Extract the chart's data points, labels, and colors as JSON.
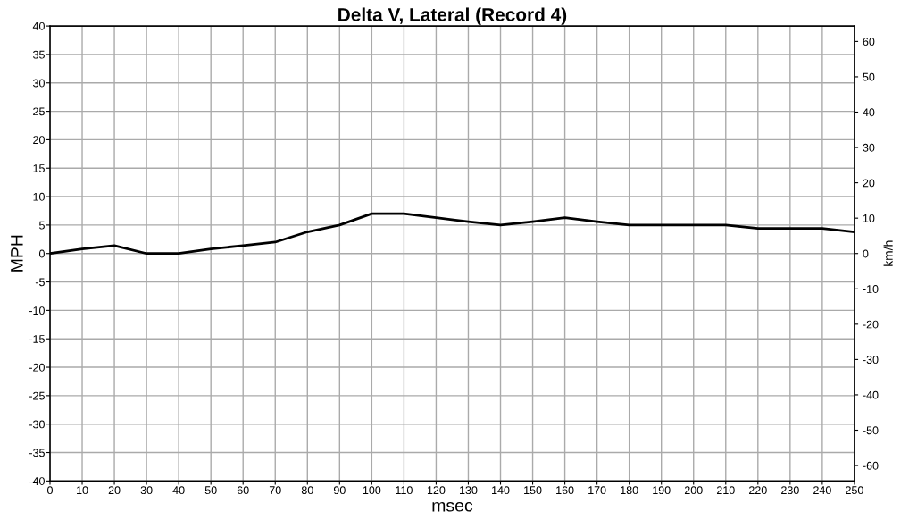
{
  "chart_data": {
    "type": "line",
    "title": "Delta V, Lateral (Record 4)",
    "xlabel": "msec",
    "ylabel": "MPH",
    "y2label": "km/h",
    "x": [
      0,
      10,
      20,
      30,
      40,
      50,
      60,
      70,
      80,
      90,
      100,
      110,
      120,
      130,
      140,
      150,
      160,
      170,
      180,
      190,
      200,
      210,
      220,
      230,
      240,
      250
    ],
    "series": [
      {
        "color": "#000000",
        "values": [
          0,
          0.8,
          1.4,
          0,
          0,
          0.8,
          1.4,
          2,
          3.8,
          5,
          7,
          7,
          6.3,
          5.6,
          5,
          5.6,
          6.3,
          5.6,
          5,
          5,
          5,
          5,
          4.4,
          4.4,
          4.4,
          3.8
        ]
      }
    ],
    "xlim": [
      0,
      250
    ],
    "xticks": [
      0,
      10,
      20,
      30,
      40,
      50,
      60,
      70,
      80,
      90,
      100,
      110,
      120,
      130,
      140,
      150,
      160,
      170,
      180,
      190,
      200,
      210,
      220,
      230,
      240,
      250
    ],
    "ylim": [
      -40,
      40
    ],
    "yticks": [
      -40,
      -35,
      -30,
      -25,
      -20,
      -15,
      -10,
      -5,
      0,
      5,
      10,
      15,
      20,
      25,
      30,
      35,
      40
    ],
    "y2lim": [
      -64.37,
      64.37
    ],
    "y2ticks": [
      -60,
      -50,
      -40,
      -30,
      -20,
      -10,
      0,
      10,
      20,
      30,
      40,
      50,
      60
    ],
    "grid": true,
    "marker": "none",
    "line_style": "solid"
  }
}
